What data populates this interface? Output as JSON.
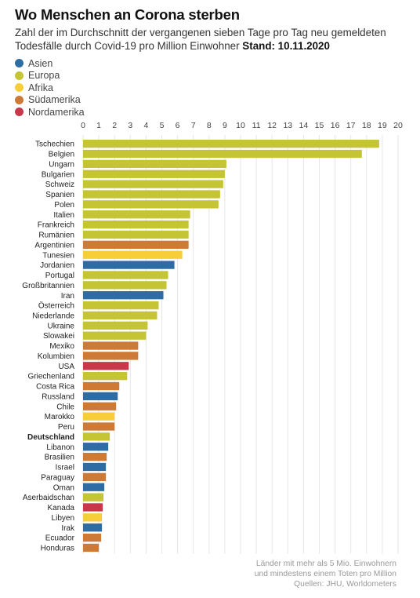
{
  "header": {
    "title": "Wo Menschen an Corona sterben",
    "subtitle": "Zahl der im Durchschnitt der vergangenen sieben Tage pro Tag neu gemeldeten Todesfälle durch Covid-19 pro Million Einwohner",
    "stand": "Stand: 10.11.2020"
  },
  "legend": [
    {
      "name": "Asien",
      "color": "#2e6da4"
    },
    {
      "name": "Europa",
      "color": "#c5c435"
    },
    {
      "name": "Afrika",
      "color": "#f7cd3a"
    },
    {
      "name": "Südamerika",
      "color": "#cc7a35"
    },
    {
      "name": "Nordamerika",
      "color": "#c8374a"
    }
  ],
  "chart_data": {
    "type": "bar",
    "orientation": "horizontal",
    "xlim": [
      0,
      20
    ],
    "ticks": [
      0,
      1,
      2,
      3,
      4,
      5,
      6,
      7,
      8,
      9,
      10,
      11,
      12,
      13,
      14,
      15,
      16,
      17,
      18,
      19,
      20
    ],
    "grid": "vertical",
    "highlight": "Deutschland",
    "categories": [
      "Tschechien",
      "Belgien",
      "Ungarn",
      "Bulgarien",
      "Schweiz",
      "Spanien",
      "Polen",
      "Italien",
      "Frankreich",
      "Rumänien",
      "Argentinien",
      "Tunesien",
      "Jordanien",
      "Portugal",
      "Großbritannien",
      "Iran",
      "Österreich",
      "Niederlande",
      "Ukraine",
      "Slowakei",
      "Mexiko",
      "Kolumbien",
      "USA",
      "Griechenland",
      "Costa Rica",
      "Russland",
      "Chile",
      "Marokko",
      "Peru",
      "Deutschland",
      "Libanon",
      "Brasilien",
      "Israel",
      "Paraguay",
      "Oman",
      "Aserbaidschan",
      "Kanada",
      "Libyen",
      "Irak",
      "Ecuador",
      "Honduras"
    ],
    "values": [
      18.8,
      17.7,
      9.1,
      9.0,
      8.9,
      8.7,
      8.6,
      6.8,
      6.7,
      6.7,
      6.7,
      6.3,
      5.8,
      5.4,
      5.3,
      5.1,
      4.8,
      4.7,
      4.1,
      4.0,
      3.5,
      3.5,
      2.9,
      2.8,
      2.3,
      2.2,
      2.1,
      2.0,
      2.0,
      1.7,
      1.6,
      1.5,
      1.45,
      1.45,
      1.35,
      1.3,
      1.25,
      1.2,
      1.2,
      1.15,
      1.0
    ],
    "regions": [
      "Europa",
      "Europa",
      "Europa",
      "Europa",
      "Europa",
      "Europa",
      "Europa",
      "Europa",
      "Europa",
      "Europa",
      "Südamerika",
      "Afrika",
      "Asien",
      "Europa",
      "Europa",
      "Asien",
      "Europa",
      "Europa",
      "Europa",
      "Europa",
      "Südamerika",
      "Südamerika",
      "Nordamerika",
      "Europa",
      "Südamerika",
      "Asien",
      "Südamerika",
      "Afrika",
      "Südamerika",
      "Europa",
      "Asien",
      "Südamerika",
      "Asien",
      "Südamerika",
      "Asien",
      "Europa",
      "Nordamerika",
      "Afrika",
      "Asien",
      "Südamerika",
      "Südamerika"
    ]
  },
  "footer": {
    "lines": [
      "Länder mit mehr als 5 Mio. Einwohnern",
      "und mindestens einem Toten pro Million",
      "Quellen: JHU, Worldometers"
    ]
  }
}
